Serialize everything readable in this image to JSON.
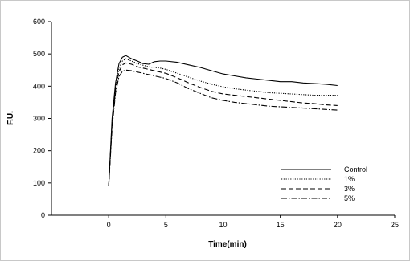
{
  "chart_data": {
    "type": "line",
    "title": "",
    "xlabel": "Time(min)",
    "ylabel": "F.U.",
    "xlim": [
      -5,
      25
    ],
    "ylim": [
      0,
      600
    ],
    "xticks": [
      0,
      5,
      10,
      15,
      20,
      25
    ],
    "yticks": [
      0,
      100,
      200,
      300,
      400,
      500,
      600
    ],
    "grid": false,
    "legend_position": "lower-right",
    "series": [
      {
        "name": "Control",
        "style": "solid",
        "x": [
          0,
          0.3,
          0.6,
          0.9,
          1.2,
          1.5,
          2,
          2.5,
          3,
          3.5,
          4,
          4.5,
          5,
          6,
          7,
          8,
          9,
          10,
          11,
          12,
          13,
          14,
          15,
          16,
          17,
          18,
          19,
          20
        ],
        "y": [
          90,
          300,
          410,
          470,
          490,
          495,
          485,
          478,
          470,
          468,
          476,
          478,
          478,
          474,
          466,
          458,
          448,
          438,
          432,
          426,
          422,
          418,
          414,
          414,
          410,
          408,
          406,
          402
        ]
      },
      {
        "name": "1%",
        "style": "dotted",
        "x": [
          0,
          0.3,
          0.6,
          0.9,
          1.2,
          1.5,
          2,
          2.5,
          3,
          3.5,
          4,
          4.5,
          5,
          6,
          7,
          8,
          9,
          10,
          11,
          12,
          13,
          14,
          15,
          16,
          17,
          18,
          19,
          20
        ],
        "y": [
          90,
          290,
          400,
          455,
          478,
          485,
          478,
          470,
          465,
          460,
          458,
          456,
          452,
          440,
          428,
          416,
          406,
          398,
          392,
          388,
          384,
          380,
          378,
          376,
          374,
          372,
          372,
          372
        ]
      },
      {
        "name": "3%",
        "style": "dashed",
        "x": [
          0,
          0.3,
          0.6,
          0.9,
          1.2,
          1.5,
          2,
          2.5,
          3,
          3.5,
          4,
          4.5,
          5,
          6,
          7,
          8,
          9,
          10,
          11,
          12,
          13,
          14,
          15,
          16,
          17,
          18,
          19,
          20
        ],
        "y": [
          90,
          280,
          390,
          445,
          466,
          472,
          468,
          460,
          456,
          452,
          448,
          444,
          440,
          426,
          410,
          396,
          384,
          376,
          372,
          368,
          364,
          360,
          356,
          352,
          348,
          346,
          342,
          340
        ]
      },
      {
        "name": "5%",
        "style": "dash-dot",
        "x": [
          0,
          0.3,
          0.6,
          0.9,
          1.2,
          1.5,
          2,
          2.5,
          3,
          3.5,
          4,
          4.5,
          5,
          6,
          7,
          8,
          9,
          10,
          11,
          12,
          13,
          14,
          15,
          16,
          17,
          18,
          19,
          20
        ],
        "y": [
          90,
          270,
          380,
          430,
          446,
          450,
          448,
          444,
          440,
          436,
          432,
          428,
          424,
          410,
          392,
          378,
          364,
          356,
          350,
          346,
          342,
          338,
          336,
          334,
          332,
          330,
          328,
          326
        ]
      }
    ]
  }
}
